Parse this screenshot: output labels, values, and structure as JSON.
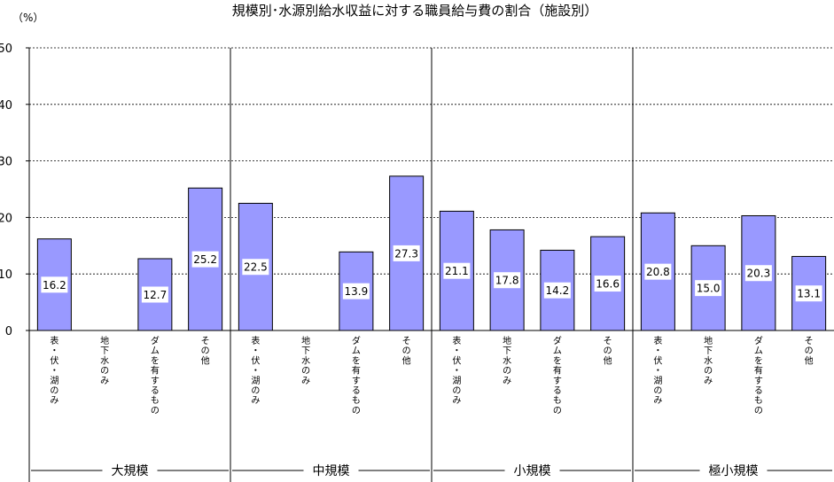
{
  "chart_data": {
    "type": "bar",
    "title": "規模別･水源別給水収益に対する職員給与費の割合（施設別）",
    "ylabel": "（%）",
    "ylim": [
      0,
      50
    ],
    "yticks": [
      "0",
      "10",
      "20",
      "30",
      "40",
      "50"
    ],
    "grid": true,
    "bar_color": "#9999ff",
    "groups": [
      {
        "name": "大規模",
        "categories": [
          "表・伏・湖のみ",
          "地下水のみ",
          "ダムを有するもの",
          "その他"
        ],
        "values": [
          16.2,
          null,
          12.7,
          25.2
        ],
        "labels": [
          "16.2",
          "",
          "12.7",
          "25.2"
        ]
      },
      {
        "name": "中規模",
        "categories": [
          "表・伏・湖のみ",
          "地下水のみ",
          "ダムを有するもの",
          "その他"
        ],
        "values": [
          22.5,
          null,
          13.9,
          27.3
        ],
        "labels": [
          "22.5",
          "",
          "13.9",
          "27.3"
        ]
      },
      {
        "name": "小規模",
        "categories": [
          "表・伏・湖のみ",
          "地下水のみ",
          "ダムを有するもの",
          "その他"
        ],
        "values": [
          21.1,
          17.8,
          14.2,
          16.6
        ],
        "labels": [
          "21.1",
          "17.8",
          "14.2",
          "16.6"
        ]
      },
      {
        "name": "極小規模",
        "categories": [
          "表・伏・湖のみ",
          "地下水のみ",
          "ダムを有するもの",
          "その他"
        ],
        "values": [
          20.8,
          15.0,
          20.3,
          13.1
        ],
        "labels": [
          "20.8",
          "15.0",
          "20.3",
          "13.1"
        ]
      }
    ]
  }
}
